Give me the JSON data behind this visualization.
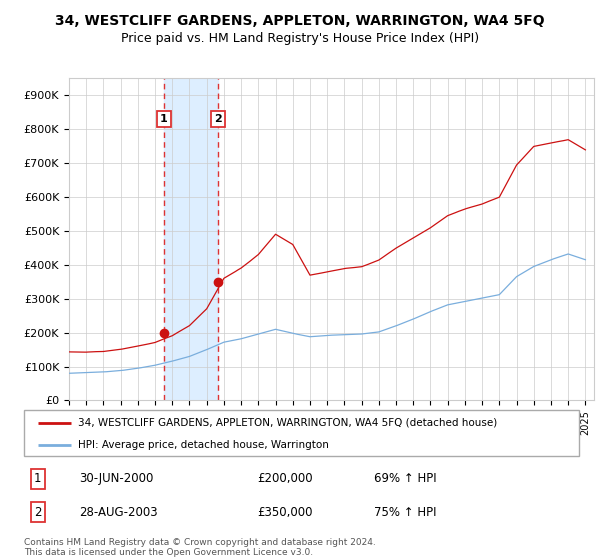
{
  "title": "34, WESTCLIFF GARDENS, APPLETON, WARRINGTON, WA4 5FQ",
  "subtitle": "Price paid vs. HM Land Registry's House Price Index (HPI)",
  "ylim": [
    0,
    950000
  ],
  "yticks": [
    0,
    100000,
    200000,
    300000,
    400000,
    500000,
    600000,
    700000,
    800000,
    900000
  ],
  "ytick_labels": [
    "£0",
    "£100K",
    "£200K",
    "£300K",
    "£400K",
    "£500K",
    "£600K",
    "£700K",
    "£800K",
    "£900K"
  ],
  "hpi_color": "#7aaedd",
  "price_color": "#cc1111",
  "transaction1_date": 2000.5,
  "transaction1_price": 200000,
  "transaction2_date": 2003.67,
  "transaction2_price": 350000,
  "shade_color": "#ddeeff",
  "vline_color": "#dd3333",
  "background_color": "#ffffff",
  "grid_color": "#cccccc",
  "legend_label_price": "34, WESTCLIFF GARDENS, APPLETON, WARRINGTON, WA4 5FQ (detached house)",
  "legend_label_hpi": "HPI: Average price, detached house, Warrington",
  "table_row1": [
    "1",
    "30-JUN-2000",
    "£200,000",
    "69% ↑ HPI"
  ],
  "table_row2": [
    "2",
    "28-AUG-2003",
    "£350,000",
    "75% ↑ HPI"
  ],
  "footnote": "Contains HM Land Registry data © Crown copyright and database right 2024.\nThis data is licensed under the Open Government Licence v3.0.",
  "xlim_left": 1995.0,
  "xlim_right": 2025.5
}
